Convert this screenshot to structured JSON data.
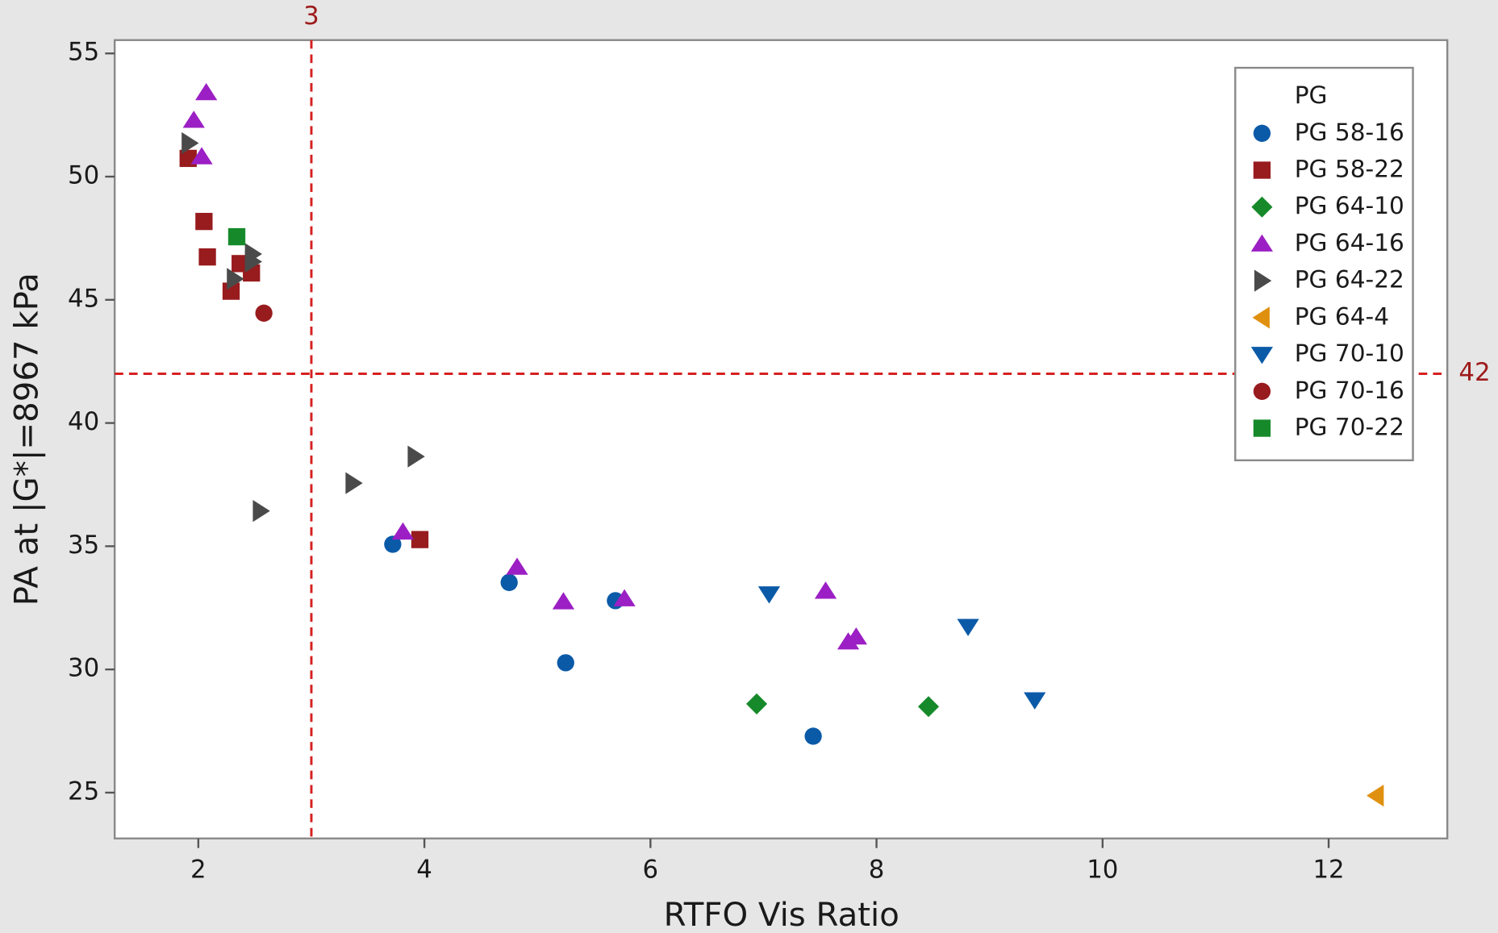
{
  "chart_data": {
    "type": "scatter",
    "x_label": "RTFO Vis Ratio",
    "y_label": "PA at |G*|=8967 kPa",
    "xlim": [
      1.26,
      13.05
    ],
    "ylim": [
      23.14,
      55.54
    ],
    "xticks": [
      2,
      4,
      6,
      8,
      10,
      12
    ],
    "yticks": [
      25,
      30,
      35,
      40,
      45,
      50,
      55
    ],
    "reference_lines": {
      "x": 3,
      "y": 42,
      "color": "#d62020",
      "label_color": "#9e1b1b"
    },
    "legend_title": "PG",
    "legend_position": "upper right",
    "series": [
      {
        "name": "PG 58-16",
        "color": "#0b5aa8",
        "marker": "circle",
        "x": [
          3.72,
          4.75,
          5.69,
          5.25,
          7.44
        ],
        "values": [
          35.08,
          33.53,
          32.79,
          30.27,
          27.29
        ]
      },
      {
        "name": "PG 58-22",
        "color": "#981b1e",
        "marker": "square",
        "x": [
          1.91,
          2.05,
          2.08,
          2.29,
          2.37,
          2.47,
          3.96
        ],
        "values": [
          50.74,
          48.18,
          46.74,
          45.35,
          46.47,
          46.09,
          35.27
        ]
      },
      {
        "name": "PG 64-10",
        "color": "#168a2a",
        "marker": "diamond",
        "x": [
          6.94,
          8.46
        ],
        "values": [
          28.6,
          28.49
        ]
      },
      {
        "name": "PG 64-16",
        "color": "#9b1fc4",
        "marker": "triangle-up",
        "x": [
          2.07,
          1.96,
          2.03,
          3.81,
          4.82,
          5.23,
          5.77,
          7.55,
          7.75,
          7.82
        ],
        "values": [
          53.41,
          52.29,
          50.81,
          35.58,
          34.15,
          32.75,
          32.87,
          33.18,
          31.12,
          31.32
        ]
      },
      {
        "name": "PG 64-22",
        "color": "#4a4a4a",
        "marker": "triangle-right",
        "x": [
          1.92,
          2.32,
          2.48,
          2.48,
          2.55,
          3.37,
          3.92
        ],
        "values": [
          51.36,
          45.85,
          46.86,
          46.55,
          36.43,
          37.56,
          38.64
        ]
      },
      {
        "name": "PG 64-4",
        "color": "#e0900f",
        "marker": "triangle-left",
        "x": [
          12.42
        ],
        "values": [
          24.88
        ]
      },
      {
        "name": "PG 70-10",
        "color": "#0b5aa8",
        "marker": "triangle-down",
        "x": [
          7.05,
          8.81,
          9.4
        ],
        "values": [
          33.06,
          31.74,
          28.76
        ]
      },
      {
        "name": "PG 70-16",
        "color": "#981b1e",
        "marker": "circle",
        "x": [
          2.58
        ],
        "values": [
          44.46
        ]
      },
      {
        "name": "PG 70-22",
        "color": "#168a2a",
        "marker": "square",
        "x": [
          2.34
        ],
        "values": [
          47.56
        ]
      }
    ]
  }
}
